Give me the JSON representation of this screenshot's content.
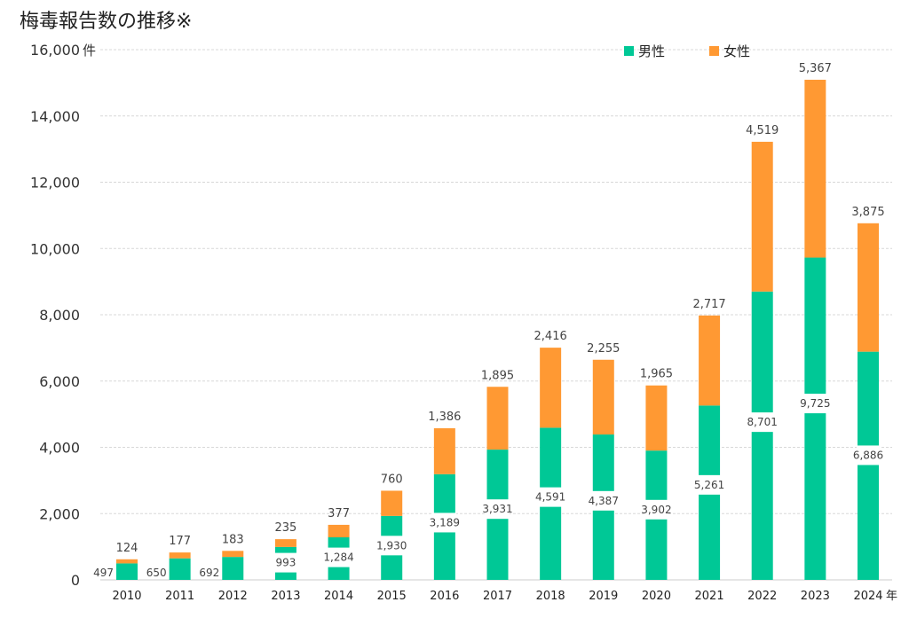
{
  "chart_data": {
    "type": "bar",
    "stacked": true,
    "title": "梅毒報告数の推移※",
    "y_unit": "件",
    "x_unit": "年",
    "ylim": [
      0,
      16000
    ],
    "yticks": [
      "0",
      "2,000",
      "4,000",
      "6,000",
      "8,000",
      "10,000",
      "12,000",
      "14,000",
      "16,000"
    ],
    "ytick_values": [
      0,
      2000,
      4000,
      6000,
      8000,
      10000,
      12000,
      14000,
      16000
    ],
    "grid": true,
    "legend_position": "top-right",
    "categories": [
      "2010",
      "2011",
      "2012",
      "2013",
      "2014",
      "2015",
      "2016",
      "2017",
      "2018",
      "2019",
      "2020",
      "2021",
      "2022",
      "2023",
      "2024"
    ],
    "series": [
      {
        "name": "男性",
        "color": "#00c896",
        "values": [
          497,
          650,
          692,
          993,
          1284,
          1930,
          3189,
          3931,
          4591,
          4387,
          3902,
          5261,
          8701,
          9725,
          6886
        ],
        "labels": [
          "497",
          "650",
          "692",
          "993",
          "1,284",
          "1,930",
          "3,189",
          "3,931",
          "4,591",
          "4,387",
          "3,902",
          "5,261",
          "8,701",
          "9,725",
          "6,886"
        ]
      },
      {
        "name": "女性",
        "color": "#ff9933",
        "values": [
          124,
          177,
          183,
          235,
          377,
          760,
          1386,
          1895,
          2416,
          2255,
          1965,
          2717,
          4519,
          5367,
          3875
        ],
        "labels": [
          "124",
          "177",
          "183",
          "235",
          "377",
          "760",
          "1,386",
          "1,895",
          "2,416",
          "2,255",
          "1,965",
          "2,717",
          "4,519",
          "5,367",
          "3,875"
        ]
      }
    ]
  }
}
